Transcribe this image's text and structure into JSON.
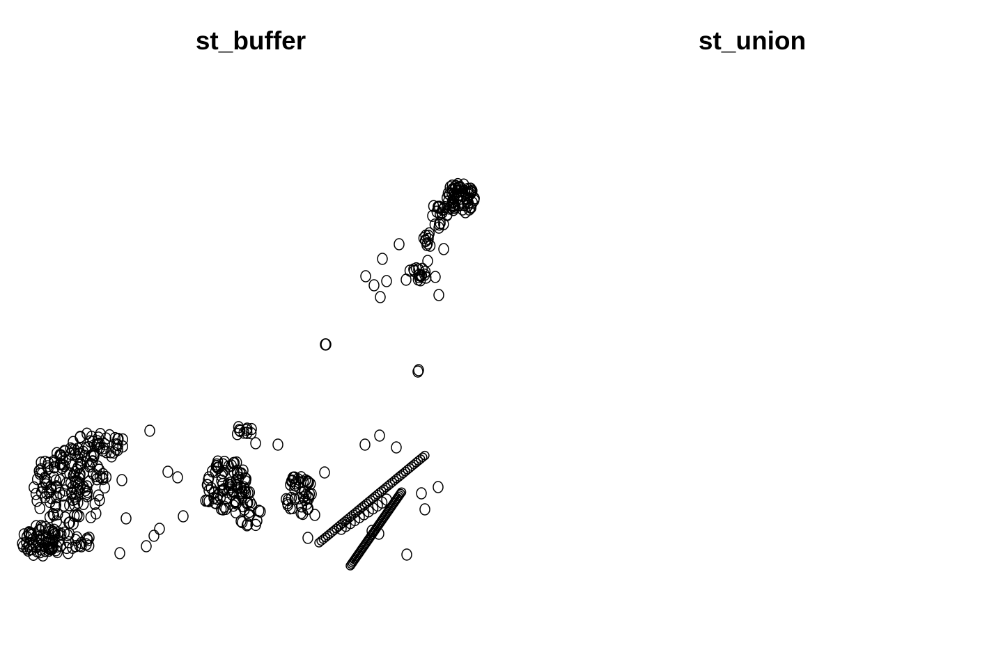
{
  "chart_data": [
    {
      "type": "map",
      "title": "st_buffer",
      "stroke_color": "#000000",
      "background": "#ffffff"
    },
    {
      "type": "map",
      "title": "st_union",
      "stroke_color": "#000000",
      "background": "#ffffff"
    }
  ]
}
